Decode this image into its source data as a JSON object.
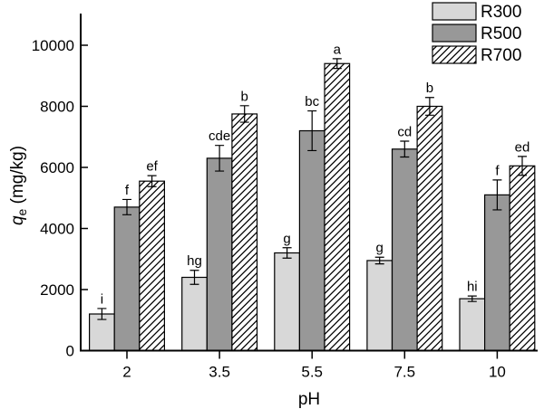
{
  "chart_data": {
    "type": "bar",
    "title": "",
    "xlabel": "pH",
    "ylabel": {
      "symbol": "q",
      "subscript": "e",
      "units": " (mg/kg)"
    },
    "categories": [
      "2",
      "3.5",
      "5.5",
      "7.5",
      "10"
    ],
    "ylim": [
      0,
      11000
    ],
    "yticks": [
      0,
      2000,
      4000,
      6000,
      8000,
      10000
    ],
    "grid": false,
    "legend_position": "top-right",
    "bar_edge_color": "#000000",
    "axis_color": "#000000",
    "series": [
      {
        "name": "R300",
        "fill": "#d8d8d8",
        "pattern": "solid",
        "values": [
          1200,
          2400,
          3200,
          2950,
          1700
        ],
        "errors": [
          180,
          230,
          170,
          110,
          90
        ],
        "letters": [
          "i",
          "hg",
          "g",
          "g",
          "hi"
        ]
      },
      {
        "name": "R500",
        "fill": "#989898",
        "pattern": "solid",
        "values": [
          4700,
          6300,
          7200,
          6600,
          5100
        ],
        "errors": [
          250,
          420,
          650,
          260,
          490
        ],
        "letters": [
          "f",
          "cde",
          "bc",
          "cd",
          "f"
        ]
      },
      {
        "name": "R700",
        "fill": "#ffffff",
        "pattern": "diagonal-hatch",
        "hatch_color": "#000000",
        "values": [
          5550,
          7750,
          9400,
          8000,
          6050
        ],
        "errors": [
          180,
          270,
          160,
          290,
          310
        ],
        "letters": [
          "ef",
          "b",
          "a",
          "b",
          "ed"
        ]
      }
    ]
  }
}
